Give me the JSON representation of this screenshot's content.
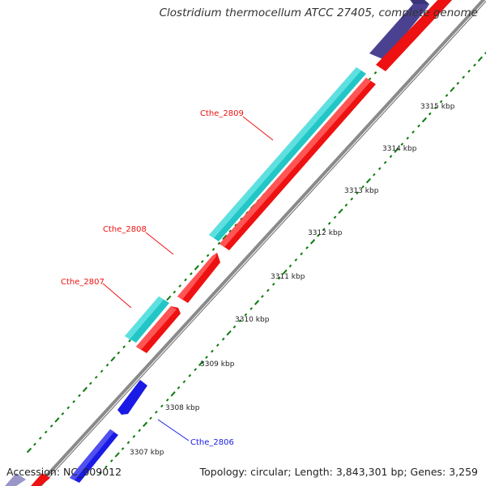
{
  "title": "Clostridium thermocellum ATCC 27405, complete genome",
  "accession": "Accession: NC_009012",
  "topology": "Topology: circular; Length: 3,843,301 bp; Genes: 3,259",
  "colors": {
    "backbone": "#8a8a8a",
    "forward_cds": "#22c6c6",
    "reverse_cds": "#ee1111",
    "other_forward": "#4a4290",
    "other_reverse": "#1a1ae6",
    "tick": "#0a7a0a"
  },
  "scale_ticks": [
    {
      "label": "3307 kbp"
    },
    {
      "label": "3308 kbp"
    },
    {
      "label": "3309 kbp"
    },
    {
      "label": "3310 kbp"
    },
    {
      "label": "3311 kbp"
    },
    {
      "label": "3312 kbp"
    },
    {
      "label": "3313 kbp"
    },
    {
      "label": "3314 kbp"
    },
    {
      "label": "3315 kbp"
    }
  ],
  "gene_labels": [
    {
      "name": "Cthe_2806",
      "color": "#1a1ae6"
    },
    {
      "name": "Cthe_2807",
      "color": "#ee1111"
    },
    {
      "name": "Cthe_2808",
      "color": "#ee1111"
    },
    {
      "name": "Cthe_2809",
      "color": "#ee1111"
    }
  ]
}
